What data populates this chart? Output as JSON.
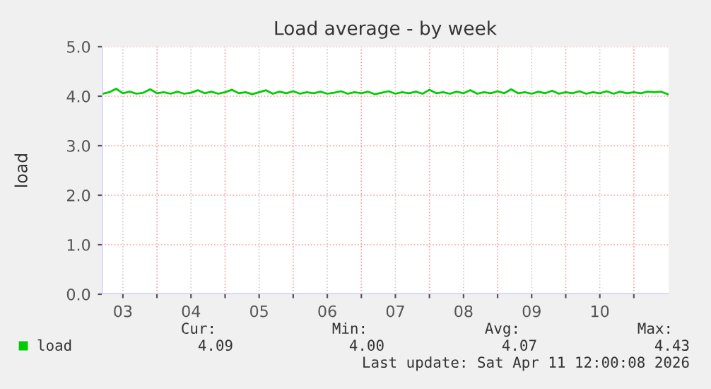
{
  "chart_data": {
    "type": "line",
    "title": "Load average - by week",
    "ylabel": "load",
    "x": [
      3.2,
      3.3,
      3.4,
      3.5,
      3.6,
      3.7,
      3.8,
      3.9,
      4.0,
      4.1,
      4.2,
      4.3,
      4.4,
      4.5,
      4.6,
      4.7,
      4.8,
      4.9,
      5.0,
      5.1,
      5.2,
      5.3,
      5.4,
      5.5,
      5.6,
      5.7,
      5.8,
      5.9,
      6.0,
      6.1,
      6.2,
      6.3,
      6.4,
      6.5,
      6.6,
      6.7,
      6.8,
      6.9,
      7.0,
      7.1,
      7.2,
      7.3,
      7.4,
      7.5,
      7.6,
      7.7,
      7.8,
      7.9,
      8.0,
      8.1,
      8.2,
      8.3,
      8.4,
      8.5,
      8.6,
      8.7,
      8.8,
      8.9,
      9.0,
      9.1,
      9.2,
      9.3,
      9.4,
      9.5,
      9.6,
      9.7,
      9.8,
      9.9,
      10.0,
      10.1,
      10.2,
      10.3,
      10.4,
      10.5,
      10.6,
      10.7,
      10.8,
      10.9,
      11.0,
      11.1,
      11.2,
      11.3,
      11.4,
      11.5
    ],
    "series": [
      {
        "name": "load",
        "color": "#00cc00",
        "values": [
          4.05,
          4.08,
          4.15,
          4.06,
          4.09,
          4.05,
          4.07,
          4.14,
          4.06,
          4.08,
          4.05,
          4.09,
          4.05,
          4.07,
          4.12,
          4.06,
          4.09,
          4.05,
          4.08,
          4.13,
          4.06,
          4.08,
          4.04,
          4.08,
          4.12,
          4.05,
          4.09,
          4.06,
          4.1,
          4.05,
          4.08,
          4.06,
          4.09,
          4.05,
          4.07,
          4.1,
          4.05,
          4.08,
          4.06,
          4.09,
          4.04,
          4.07,
          4.1,
          4.05,
          4.08,
          4.06,
          4.09,
          4.05,
          4.13,
          4.06,
          4.08,
          4.05,
          4.09,
          4.06,
          4.12,
          4.05,
          4.08,
          4.06,
          4.1,
          4.06,
          4.14,
          4.06,
          4.08,
          4.05,
          4.09,
          4.06,
          4.11,
          4.05,
          4.08,
          4.06,
          4.1,
          4.05,
          4.08,
          4.06,
          4.1,
          4.05,
          4.09,
          4.06,
          4.08,
          4.06,
          4.09,
          4.08,
          4.09,
          4.04
        ]
      }
    ],
    "xlim": [
      3.19,
      11.51
    ],
    "xticks": [
      {
        "value": 3.5,
        "label": "03"
      },
      {
        "value": 4,
        "label": null
      },
      {
        "value": 4.5,
        "label": "04"
      },
      {
        "value": 5,
        "label": null
      },
      {
        "value": 5.5,
        "label": "05"
      },
      {
        "value": 6,
        "label": null
      },
      {
        "value": 6.5,
        "label": "06"
      },
      {
        "value": 7,
        "label": null
      },
      {
        "value": 7.5,
        "label": "07"
      },
      {
        "value": 8,
        "label": null
      },
      {
        "value": 8.5,
        "label": "08"
      },
      {
        "value": 9,
        "label": null
      },
      {
        "value": 9.5,
        "label": "09"
      },
      {
        "value": 10,
        "label": null
      },
      {
        "value": 10.5,
        "label": "10"
      },
      {
        "value": 11,
        "label": null
      }
    ],
    "ylim": [
      0,
      5
    ],
    "yticks": [
      {
        "value": 0,
        "label": "0.0"
      },
      {
        "value": 1,
        "label": "1.0"
      },
      {
        "value": 2,
        "label": "2.0"
      },
      {
        "value": 3,
        "label": "3.0"
      },
      {
        "value": 4,
        "label": "4.0"
      },
      {
        "value": 5,
        "label": "5.0"
      }
    ],
    "grid": true,
    "legend": "bottom left",
    "marker": "none",
    "line_style": "solid",
    "annotations": [
      "Cur:",
      "4.09",
      "Min:",
      "4.00",
      "Avg:",
      "4.07",
      "Max:",
      "4.43",
      "Last update: Sat Apr 11 12:00:08 2026"
    ]
  }
}
